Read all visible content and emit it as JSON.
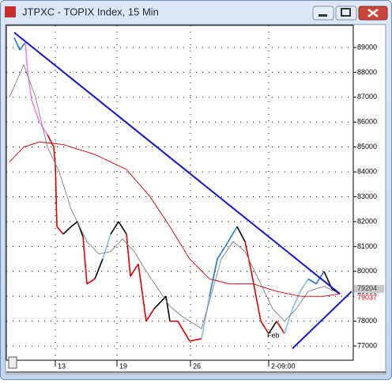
{
  "window": {
    "title": "JTPXC - TOPIX Index, 15 Min"
  },
  "chart_data": {
    "type": "line",
    "xlim": [
      8,
      447
    ],
    "ylim": [
      76430,
      89890
    ],
    "yticks": [
      77000,
      78000,
      79000,
      80000,
      81000,
      82000,
      83000,
      84000,
      85000,
      86000,
      87000,
      88000,
      89000
    ],
    "xticks": [
      {
        "value": 70,
        "label": "13"
      },
      {
        "value": 148,
        "label": "19"
      },
      {
        "value": 241,
        "label": "26"
      },
      {
        "value": 340,
        "label": "2-09:00"
      }
    ],
    "grid": true,
    "annotations": [
      {
        "text": "Feb",
        "x": 340
      }
    ],
    "series": [
      {
        "x": [
          18,
          25,
          32,
          35,
          40,
          50,
          60,
          68,
          70,
          72,
          80,
          90,
          98,
          105,
          110,
          120,
          130,
          140,
          150,
          160,
          165,
          175,
          185,
          195,
          210,
          215,
          225,
          240,
          255,
          265,
          275,
          285,
          300,
          310,
          318,
          330,
          340,
          350,
          360,
          370,
          380,
          390,
          400,
          410,
          420,
          430
        ],
        "values": [
          89400,
          88900,
          89200,
          88000,
          86900,
          86000,
          85500,
          85000,
          84300,
          81800,
          81500,
          81800,
          82000,
          81400,
          79500,
          79700,
          80500,
          81500,
          82000,
          81500,
          79800,
          80300,
          78000,
          78500,
          79000,
          78000,
          78000,
          77200,
          77300,
          79000,
          80500,
          81000,
          81800,
          81200,
          80000,
          78000,
          77500,
          78000,
          77500,
          78500,
          79200,
          79700,
          79500,
          80000,
          79300,
          79100
        ],
        "colors": [
          "#1e78d2",
          "#1e78d2",
          "#1e78d2",
          "#ee82ee",
          "#ee82ee",
          "#ee82ee",
          "#ee82ee",
          "#e00000",
          "#e00000",
          "#e00000",
          "#e00000",
          "#000000",
          "#000000",
          "#000000",
          "#e00000",
          "#e00000",
          "#000000",
          "#87bde8",
          "#000000",
          "#000000",
          "#e00000",
          "#e00000",
          "#e00000",
          "#e00000",
          "#000000",
          "#000000",
          "#e00000",
          "#e00000",
          "#e00000",
          "#87bde8",
          "#1e78d2",
          "#1e78d2",
          "#1e78d2",
          "#000000",
          "#e00000",
          "#e00000",
          "#e00000",
          "#000000",
          "#e00000",
          "#87bde8",
          "#87bde8",
          "#87bde8",
          "#1e78d2",
          "#1e78d2",
          "#000000",
          "#000000"
        ]
      },
      {
        "x": [
          12,
          30,
          45,
          60,
          75,
          90,
          110,
          125,
          140,
          155,
          170,
          185,
          200,
          215,
          230,
          255,
          265,
          280,
          295,
          310,
          330,
          345,
          360,
          375,
          390,
          410,
          430
        ],
        "values": [
          87000,
          88300,
          87000,
          85000,
          84000,
          82500,
          81200,
          80700,
          80800,
          81300,
          80800,
          80000,
          79300,
          78600,
          78200,
          77700,
          78800,
          80500,
          81200,
          80800,
          79500,
          78500,
          78000,
          78500,
          79200,
          79400,
          79100
        ],
        "color": "#808080"
      },
      {
        "x": [
          12,
          30,
          50,
          80,
          120,
          160,
          190,
          215,
          240,
          265,
          290,
          320,
          350,
          380,
          410,
          430
        ],
        "values": [
          84400,
          85000,
          85200,
          85100,
          84700,
          84100,
          83000,
          81800,
          80500,
          79700,
          79500,
          79500,
          79200,
          79000,
          79000,
          79100
        ],
        "color": "#d00000"
      }
    ],
    "trendlines": [
      {
        "x": [
          18,
          430
        ],
        "values": [
          89600,
          79100
        ],
        "color": "#1414d2"
      },
      {
        "x": [
          370,
          445
        ],
        "values": [
          76900,
          79200
        ],
        "color": "#1414d2"
      }
    ],
    "price_tags": [
      {
        "value": 79204,
        "color": "#404040"
      },
      {
        "value": 79037,
        "color": "#e00000"
      }
    ]
  }
}
